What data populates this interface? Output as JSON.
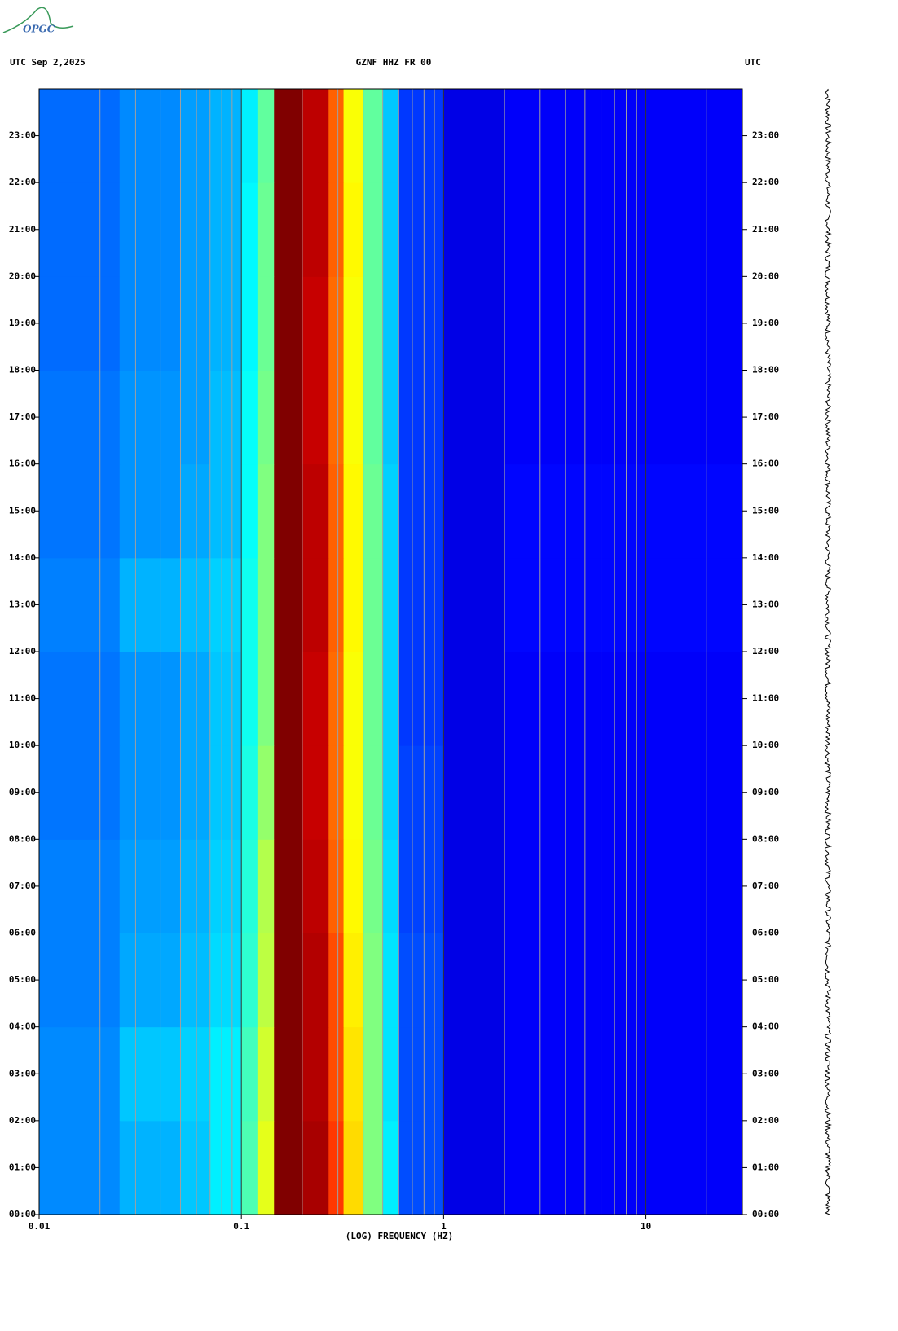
{
  "chart_data": {
    "type": "spectrogram",
    "logo": "OPGC",
    "title_left": "UTC  Sep 2,2025",
    "title": "GZNF HHZ FR 00",
    "title_right": "UTC",
    "xlabel": "(LOG) FREQUENCY (HZ)",
    "log_x": true,
    "xlim": [
      0.01,
      30
    ],
    "xticks": [
      0.01,
      0.1,
      1,
      10
    ],
    "xminorticks": [
      0.02,
      0.03,
      0.04,
      0.05,
      0.06,
      0.07,
      0.08,
      0.09,
      0.2,
      0.3,
      0.4,
      0.5,
      0.6,
      0.7,
      0.8,
      0.9,
      2,
      3,
      4,
      5,
      6,
      7,
      8,
      9,
      20
    ],
    "ylim": [
      0,
      24
    ],
    "yticks": [
      {
        "value": 0,
        "label": "00:00"
      },
      {
        "value": 1,
        "label": "01:00"
      },
      {
        "value": 2,
        "label": "02:00"
      },
      {
        "value": 3,
        "label": "03:00"
      },
      {
        "value": 4,
        "label": "04:00"
      },
      {
        "value": 5,
        "label": "05:00"
      },
      {
        "value": 6,
        "label": "06:00"
      },
      {
        "value": 7,
        "label": "07:00"
      },
      {
        "value": 8,
        "label": "08:00"
      },
      {
        "value": 9,
        "label": "09:00"
      },
      {
        "value": 10,
        "label": "10:00"
      },
      {
        "value": 11,
        "label": "11:00"
      },
      {
        "value": 12,
        "label": "12:00"
      },
      {
        "value": 13,
        "label": "13:00"
      },
      {
        "value": 14,
        "label": "14:00"
      },
      {
        "value": 15,
        "label": "15:00"
      },
      {
        "value": 16,
        "label": "16:00"
      },
      {
        "value": 17,
        "label": "17:00"
      },
      {
        "value": 18,
        "label": "18:00"
      },
      {
        "value": 19,
        "label": "19:00"
      },
      {
        "value": 20,
        "label": "20:00"
      },
      {
        "value": 21,
        "label": "21:00"
      },
      {
        "value": 22,
        "label": "22:00"
      },
      {
        "value": 23,
        "label": "23:00"
      }
    ],
    "xbins": [
      0.01,
      0.025,
      0.05,
      0.07,
      0.1,
      0.12,
      0.145,
      0.2,
      0.27,
      0.32,
      0.4,
      0.5,
      0.6,
      1,
      2,
      30
    ],
    "ybins": [
      0,
      2,
      4,
      6,
      8,
      10,
      12,
      14,
      16,
      18,
      20,
      22,
      24
    ],
    "z": [
      [
        0.26,
        0.3,
        0.32,
        0.36,
        0.45,
        0.6,
        1.0,
        0.96,
        0.82,
        0.66,
        0.5,
        0.36,
        0.2,
        0.1,
        0.12
      ],
      [
        0.26,
        0.32,
        0.33,
        0.36,
        0.44,
        0.58,
        1.0,
        0.95,
        0.8,
        0.65,
        0.5,
        0.35,
        0.2,
        0.1,
        0.12
      ],
      [
        0.25,
        0.29,
        0.31,
        0.34,
        0.42,
        0.56,
        1.0,
        0.95,
        0.8,
        0.64,
        0.5,
        0.35,
        0.2,
        0.1,
        0.12
      ],
      [
        0.25,
        0.28,
        0.3,
        0.33,
        0.41,
        0.55,
        1.0,
        0.94,
        0.78,
        0.63,
        0.49,
        0.34,
        0.19,
        0.1,
        0.12
      ],
      [
        0.24,
        0.27,
        0.29,
        0.32,
        0.4,
        0.52,
        1.0,
        0.93,
        0.77,
        0.62,
        0.48,
        0.33,
        0.19,
        0.1,
        0.12
      ],
      [
        0.24,
        0.27,
        0.29,
        0.32,
        0.39,
        0.5,
        1.0,
        0.93,
        0.77,
        0.62,
        0.48,
        0.33,
        0.18,
        0.1,
        0.12
      ],
      [
        0.25,
        0.3,
        0.31,
        0.33,
        0.39,
        0.5,
        1.0,
        0.94,
        0.78,
        0.63,
        0.48,
        0.33,
        0.18,
        0.1,
        0.13
      ],
      [
        0.24,
        0.27,
        0.29,
        0.31,
        0.38,
        0.5,
        1.0,
        0.94,
        0.78,
        0.63,
        0.48,
        0.33,
        0.18,
        0.1,
        0.13
      ],
      [
        0.24,
        0.27,
        0.28,
        0.31,
        0.38,
        0.49,
        1.0,
        0.93,
        0.77,
        0.62,
        0.47,
        0.32,
        0.18,
        0.1,
        0.12
      ],
      [
        0.23,
        0.26,
        0.28,
        0.3,
        0.37,
        0.48,
        1.0,
        0.93,
        0.77,
        0.62,
        0.47,
        0.32,
        0.18,
        0.1,
        0.12
      ],
      [
        0.23,
        0.26,
        0.28,
        0.3,
        0.37,
        0.48,
        1.0,
        0.94,
        0.78,
        0.63,
        0.47,
        0.32,
        0.18,
        0.1,
        0.12
      ],
      [
        0.23,
        0.26,
        0.28,
        0.3,
        0.36,
        0.47,
        1.0,
        0.94,
        0.78,
        0.62,
        0.47,
        0.32,
        0.18,
        0.1,
        0.12
      ]
    ]
  }
}
